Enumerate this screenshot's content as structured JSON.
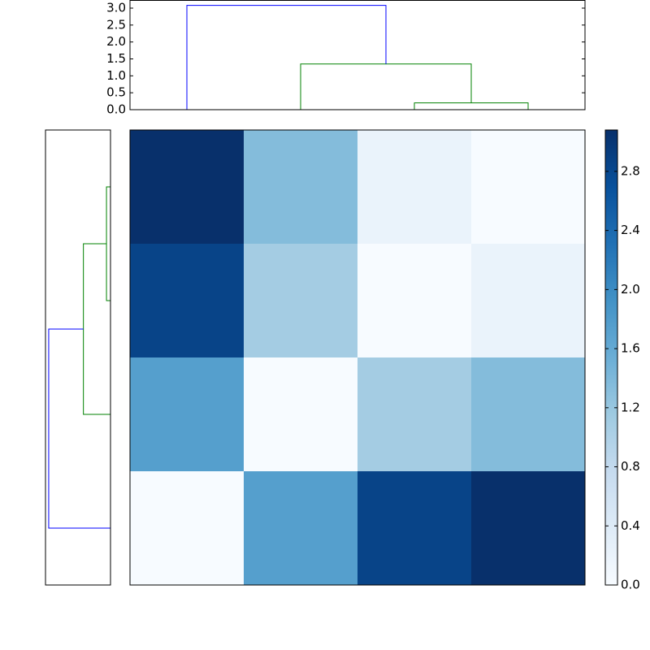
{
  "chart_data": {
    "type": "heatmap",
    "colormap": "Blues",
    "values": [
      [
        3.08,
        1.35,
        0.2,
        0
      ],
      [
        2.85,
        1.1,
        0,
        0.2
      ],
      [
        1.75,
        0,
        1.1,
        1.35
      ],
      [
        0,
        1.75,
        2.85,
        3.08
      ]
    ],
    "clim": [
      0,
      3.08
    ],
    "colorbar_ticks": [
      {
        "value": 0,
        "label": "0.0"
      },
      {
        "value": 0.4,
        "label": "0.4"
      },
      {
        "value": 0.8,
        "label": "0.8"
      },
      {
        "value": 1.2,
        "label": "1.2"
      },
      {
        "value": 1.6,
        "label": "1.6"
      },
      {
        "value": 2.0,
        "label": "2.0"
      },
      {
        "value": 2.4,
        "label": "2.4"
      },
      {
        "value": 2.8,
        "label": "2.8"
      }
    ],
    "dendrogram": {
      "leaf_lim": [
        0,
        40
      ],
      "height_lim": [
        0,
        3.24
      ],
      "heightticks": [
        {
          "value": 0,
          "label": "0.0"
        },
        {
          "value": 0.5,
          "label": "0.5"
        },
        {
          "value": 1.0,
          "label": "1.0"
        },
        {
          "value": 1.5,
          "label": "1.5"
        },
        {
          "value": 2.0,
          "label": "2.0"
        },
        {
          "value": 2.5,
          "label": "2.5"
        },
        {
          "value": 3.0,
          "label": "3.0"
        }
      ],
      "links": [
        {
          "x": [
            25,
            25,
            35,
            35
          ],
          "y": [
            0,
            0.2,
            0.2,
            0
          ],
          "color": "#008000"
        },
        {
          "x": [
            15,
            15,
            30,
            30
          ],
          "y": [
            0,
            1.35,
            1.35,
            0.2
          ],
          "color": "#008000"
        },
        {
          "x": [
            5,
            5,
            22.5,
            22.5
          ],
          "y": [
            0,
            3.08,
            3.08,
            1.35
          ],
          "color": "#0000ff"
        }
      ]
    }
  }
}
